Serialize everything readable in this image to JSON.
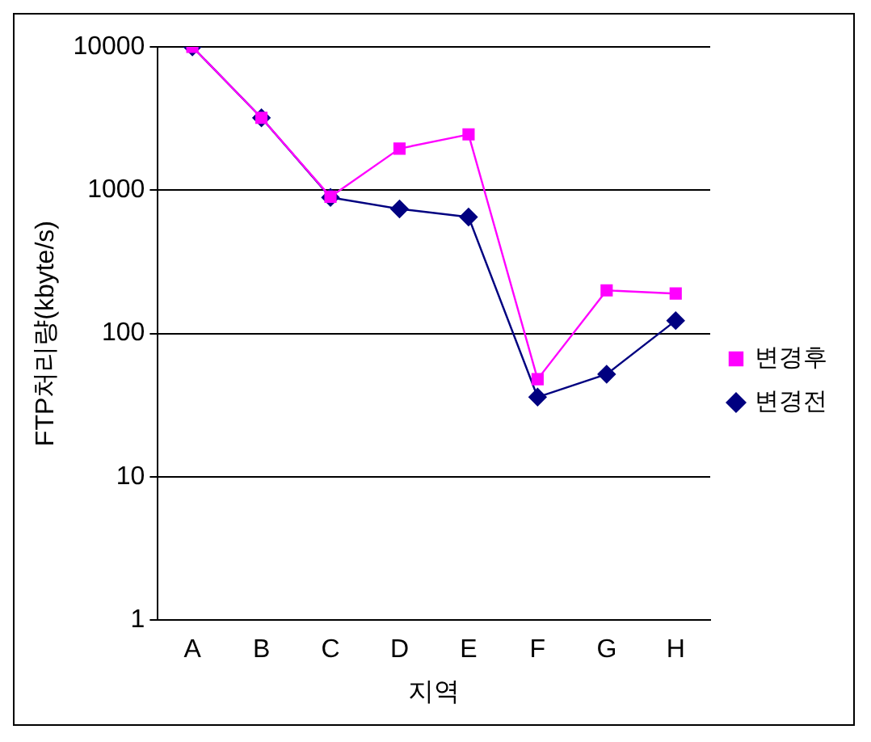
{
  "chart_data": {
    "type": "line",
    "xlabel": "지역",
    "ylabel": "FTP처리량(kbyte/s)",
    "categories": [
      "A",
      "B",
      "C",
      "D",
      "E",
      "F",
      "G",
      "H"
    ],
    "series": [
      {
        "name": "변경전",
        "color": "#000080",
        "marker": "diamond",
        "values": [
          10000,
          3200,
          890,
          740,
          650,
          36,
          52,
          123
        ]
      },
      {
        "name": "변경후",
        "color": "#ff00ff",
        "marker": "square",
        "values": [
          10000,
          3200,
          900,
          1950,
          2450,
          48,
          200,
          190
        ]
      }
    ],
    "log": "y",
    "ylim": [
      1,
      10000
    ],
    "yticks": [
      1,
      10,
      100,
      1000,
      10000
    ],
    "grid": "y",
    "legend": "right",
    "line_style": "solid"
  }
}
